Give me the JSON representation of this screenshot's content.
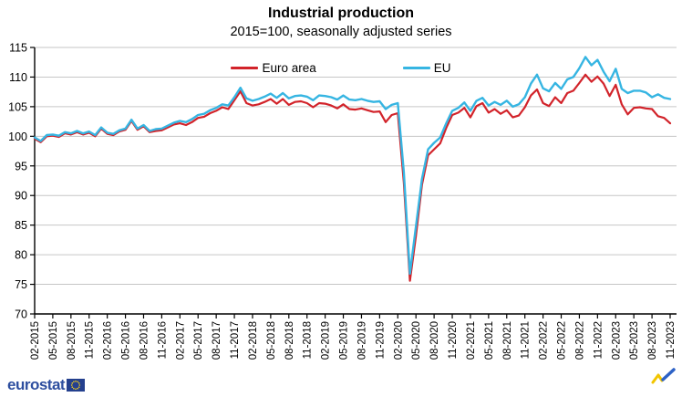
{
  "header": {
    "title": "Industrial production",
    "subtitle": "2015=100, seasonally adjusted series"
  },
  "footer": {
    "brand": "eurostat",
    "brand_color": "#2d4e9f",
    "flag_color": "#24408e",
    "star_color": "#ffd617",
    "mark_yellow": "#f2c500",
    "mark_blue": "#2d62c6"
  },
  "chart_data": {
    "type": "line",
    "title": "Industrial production",
    "subtitle": "2015=100, seasonally adjusted series",
    "frequency": "monthly",
    "x_start": "02-2015",
    "x_end": "11-2023",
    "x_tick_labels": [
      "02-2015",
      "05-2015",
      "08-2015",
      "11-2015",
      "02-2016",
      "05-2016",
      "08-2016",
      "11-2016",
      "02-2017",
      "05-2017",
      "08-2017",
      "11-2017",
      "02-2018",
      "05-2018",
      "08-2018",
      "11-2018",
      "02-2019",
      "05-2019",
      "08-2019",
      "11-2019",
      "02-2020",
      "05-2020",
      "08-2020",
      "11-2020",
      "02-2021",
      "05-2021",
      "08-2021",
      "11-2021",
      "02-2022",
      "05-2022",
      "08-2022",
      "11-2022",
      "02-2023",
      "05-2023",
      "08-2023",
      "11-2023"
    ],
    "x_tick_step_months": 3,
    "y_ticks": [
      70,
      75,
      80,
      85,
      90,
      95,
      100,
      105,
      110,
      115
    ],
    "ylim": [
      70,
      115
    ],
    "grid": "horizontal",
    "grid_color": "#c6c6c6",
    "legend_position": "top-center",
    "series": [
      {
        "name": "Euro area",
        "color": "#d2232a",
        "values": [
          99.6,
          99.0,
          100.0,
          100.1,
          99.9,
          100.5,
          100.3,
          100.7,
          100.3,
          100.6,
          100.0,
          101.3,
          100.4,
          100.2,
          100.8,
          101.1,
          102.6,
          101.1,
          101.7,
          100.7,
          100.9,
          101.0,
          101.5,
          102.0,
          102.2,
          101.9,
          102.4,
          103.1,
          103.3,
          103.9,
          104.3,
          104.9,
          104.6,
          106.1,
          107.6,
          105.6,
          105.2,
          105.4,
          105.8,
          106.3,
          105.5,
          106.3,
          105.3,
          105.8,
          105.9,
          105.6,
          104.9,
          105.6,
          105.5,
          105.2,
          104.7,
          105.4,
          104.6,
          104.5,
          104.7,
          104.4,
          104.1,
          104.2,
          102.4,
          103.6,
          103.9,
          92.2,
          75.6,
          83.2,
          91.8,
          96.8,
          97.8,
          98.8,
          101.4,
          103.6,
          104.0,
          104.8,
          103.2,
          105.1,
          105.6,
          104.0,
          104.6,
          103.8,
          104.4,
          103.2,
          103.5,
          104.9,
          106.9,
          107.9,
          105.6,
          105.1,
          106.6,
          105.6,
          107.3,
          107.7,
          109.0,
          110.4,
          109.2,
          110.1,
          108.9,
          106.8,
          108.7,
          105.4,
          103.7,
          104.8,
          104.9,
          104.7,
          104.6,
          103.4,
          103.1,
          102.2
        ]
      },
      {
        "name": "EU",
        "color": "#36b5e2",
        "values": [
          99.8,
          99.2,
          100.2,
          100.3,
          100.1,
          100.7,
          100.5,
          100.9,
          100.5,
          100.8,
          100.2,
          101.5,
          100.6,
          100.4,
          101.0,
          101.3,
          102.8,
          101.3,
          101.9,
          100.9,
          101.2,
          101.3,
          101.8,
          102.3,
          102.6,
          102.4,
          102.9,
          103.6,
          103.8,
          104.4,
          104.8,
          105.4,
          105.2,
          106.6,
          108.2,
          106.4,
          106.0,
          106.3,
          106.7,
          107.2,
          106.5,
          107.3,
          106.4,
          106.8,
          106.9,
          106.7,
          106.1,
          106.9,
          106.8,
          106.6,
          106.2,
          106.9,
          106.2,
          106.1,
          106.3,
          106.0,
          105.8,
          105.9,
          104.6,
          105.3,
          105.6,
          94.0,
          76.8,
          84.8,
          92.8,
          97.8,
          98.9,
          99.8,
          102.2,
          104.3,
          104.8,
          105.7,
          104.3,
          106.0,
          106.5,
          105.2,
          105.8,
          105.3,
          106.0,
          105.0,
          105.4,
          106.6,
          108.9,
          110.4,
          108.1,
          107.6,
          109.0,
          108.0,
          109.6,
          110.0,
          111.5,
          113.4,
          112.0,
          112.9,
          110.9,
          109.3,
          111.4,
          108.0,
          107.3,
          107.7,
          107.7,
          107.4,
          106.6,
          107.1,
          106.5,
          106.3
        ]
      }
    ]
  }
}
